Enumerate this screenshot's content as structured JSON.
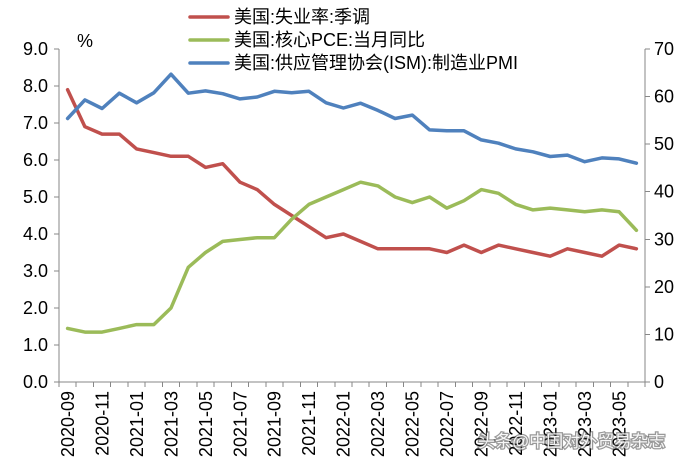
{
  "chart_data": {
    "type": "line",
    "x": [
      "2020-09",
      "2020-10",
      "2020-11",
      "2020-12",
      "2021-01",
      "2021-02",
      "2021-03",
      "2021-04",
      "2021-05",
      "2021-06",
      "2021-07",
      "2021-08",
      "2021-09",
      "2021-10",
      "2021-11",
      "2021-12",
      "2022-01",
      "2022-02",
      "2022-03",
      "2022-04",
      "2022-05",
      "2022-06",
      "2022-07",
      "2022-08",
      "2022-09",
      "2022-10",
      "2022-11",
      "2022-12",
      "2023-01",
      "2023-02",
      "2023-03",
      "2023-04",
      "2023-05",
      "2023-06"
    ],
    "ylabel_left": "%",
    "ylim_left": [
      0,
      9
    ],
    "ylim_right": [
      0,
      70
    ],
    "y_left_tick_labels": [
      "0.0",
      "1.0",
      "2.0",
      "3.0",
      "4.0",
      "5.0",
      "6.0",
      "7.0",
      "8.0",
      "9.0"
    ],
    "y_right_tick_labels": [
      "0",
      "10",
      "20",
      "30",
      "40",
      "50",
      "60",
      "70"
    ],
    "grid": false,
    "legend_position": "top",
    "series": [
      {
        "name": "美国:失业率:季调",
        "axis": "left",
        "color": "#C0504D",
        "values": [
          7.9,
          6.9,
          6.7,
          6.7,
          6.3,
          6.2,
          6.1,
          6.1,
          5.8,
          5.9,
          5.4,
          5.2,
          4.8,
          4.5,
          4.2,
          3.9,
          4.0,
          3.8,
          3.6,
          3.6,
          3.6,
          3.6,
          3.5,
          3.7,
          3.5,
          3.7,
          3.6,
          3.5,
          3.4,
          3.6,
          3.5,
          3.4,
          3.7,
          3.6
        ]
      },
      {
        "name": "美国:核心PCE:当月同比",
        "axis": "left",
        "color": "#9BBB59",
        "values": [
          1.45,
          1.35,
          1.35,
          1.45,
          1.55,
          1.55,
          2.0,
          3.1,
          3.5,
          3.8,
          3.85,
          3.9,
          3.9,
          4.4,
          4.8,
          5.0,
          5.2,
          5.4,
          5.3,
          5.0,
          4.85,
          5.0,
          4.7,
          4.9,
          5.2,
          5.1,
          4.8,
          4.65,
          4.7,
          4.65,
          4.6,
          4.65,
          4.6,
          4.1
        ]
      },
      {
        "name": "美国:供应管理协会(ISM):制造业PMI",
        "axis": "right",
        "color": "#4F81BD",
        "values": [
          55.4,
          59.3,
          57.5,
          60.7,
          58.7,
          60.8,
          64.7,
          60.7,
          61.2,
          60.6,
          59.5,
          59.9,
          61.1,
          60.8,
          61.1,
          58.7,
          57.6,
          58.6,
          57.1,
          55.4,
          56.1,
          53.0,
          52.8,
          52.8,
          50.9,
          50.2,
          49.0,
          48.4,
          47.4,
          47.7,
          46.3,
          47.1,
          46.9,
          46.0
        ]
      }
    ]
  },
  "watermark": "头条@中国对外贸易杂志"
}
